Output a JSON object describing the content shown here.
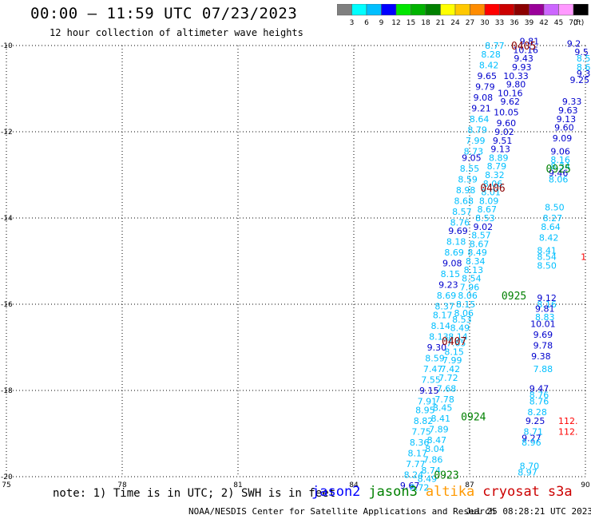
{
  "title": "00:00 – 11:59 UTC 07/23/2023",
  "subtitle": "12 hour collection of altimeter wave heights",
  "colorbar": {
    "labels": [
      "3",
      "6",
      "9",
      "12",
      "15",
      "18",
      "21",
      "24",
      "27",
      "30",
      "33",
      "36",
      "39",
      "42",
      "45",
      "70"
    ],
    "unit": "(ft)",
    "colors": [
      "#7f7f7f",
      "#00ffff",
      "#00bfff",
      "#0000ff",
      "#00e600",
      "#00b300",
      "#008000",
      "#ffff00",
      "#ffc800",
      "#ff8c00",
      "#ff0000",
      "#cc0000",
      "#8b0000",
      "#990099",
      "#cc66ff",
      "#ff99ff",
      "#000000"
    ]
  },
  "map": {
    "lon_ticks": [
      75,
      78,
      81,
      84,
      87,
      90
    ],
    "lat_ticks": [
      -10,
      -12,
      -14,
      -16,
      -18,
      -20
    ],
    "lon_range": [
      75,
      90
    ],
    "lat_range": [
      -20,
      -10
    ]
  },
  "time_labels": [
    {
      "text": "0405",
      "lon": 88.4,
      "lat": -10.0,
      "color": "#8b0000"
    },
    {
      "text": "0406",
      "lon": 87.6,
      "lat": -13.3,
      "color": "#8b0000"
    },
    {
      "text": "0407",
      "lon": 86.6,
      "lat": -16.85,
      "color": "#8b0000"
    },
    {
      "text": "0925",
      "lon": 89.3,
      "lat": -12.85,
      "color": "#008000"
    },
    {
      "text": "0925",
      "lon": 88.15,
      "lat": -15.8,
      "color": "#008000"
    },
    {
      "text": "0924",
      "lon": 87.1,
      "lat": -18.6,
      "color": "#008000"
    },
    {
      "text": "0923",
      "lon": 86.4,
      "lat": -19.95,
      "color": "#008000"
    }
  ],
  "swh_labels": [
    {
      "text": "8.77",
      "lon": 87.65,
      "lat": -10.0,
      "c": "l"
    },
    {
      "text": "8.28",
      "lon": 87.55,
      "lat": -10.2,
      "c": "l"
    },
    {
      "text": "8.42",
      "lon": 87.5,
      "lat": -10.45,
      "c": "l"
    },
    {
      "text": "9.65",
      "lon": 87.45,
      "lat": -10.7,
      "c": "d"
    },
    {
      "text": "9.79",
      "lon": 87.4,
      "lat": -10.95,
      "c": "d"
    },
    {
      "text": "9.08",
      "lon": 87.35,
      "lat": -11.2,
      "c": "d"
    },
    {
      "text": "9.21",
      "lon": 87.3,
      "lat": -11.45,
      "c": "d"
    },
    {
      "text": "8.64",
      "lon": 87.25,
      "lat": -11.7,
      "c": "l"
    },
    {
      "text": "8.79",
      "lon": 87.2,
      "lat": -11.95,
      "c": "l"
    },
    {
      "text": "7.99",
      "lon": 87.15,
      "lat": -12.2,
      "c": "l"
    },
    {
      "text": "8.73",
      "lon": 87.1,
      "lat": -12.45,
      "c": "l"
    },
    {
      "text": "9.05",
      "lon": 87.05,
      "lat": -12.6,
      "c": "d"
    },
    {
      "text": "8.55",
      "lon": 87.0,
      "lat": -12.85,
      "c": "l"
    },
    {
      "text": "8.59",
      "lon": 86.95,
      "lat": -13.1,
      "c": "l"
    },
    {
      "text": "8.98",
      "lon": 86.9,
      "lat": -13.35,
      "c": "l"
    },
    {
      "text": "8.68",
      "lon": 86.85,
      "lat": -13.6,
      "c": "l"
    },
    {
      "text": "8.57",
      "lon": 86.8,
      "lat": -13.85,
      "c": "l"
    },
    {
      "text": "8.76",
      "lon": 86.75,
      "lat": -14.1,
      "c": "l"
    },
    {
      "text": "9.69",
      "lon": 86.7,
      "lat": -14.3,
      "c": "d"
    },
    {
      "text": "8.18",
      "lon": 86.65,
      "lat": -14.55,
      "c": "l"
    },
    {
      "text": "8.69",
      "lon": 86.6,
      "lat": -14.8,
      "c": "l"
    },
    {
      "text": "9.08",
      "lon": 86.55,
      "lat": -15.05,
      "c": "d"
    },
    {
      "text": "8.15",
      "lon": 86.5,
      "lat": -15.3,
      "c": "l"
    },
    {
      "text": "9.23",
      "lon": 86.45,
      "lat": -15.55,
      "c": "d"
    },
    {
      "text": "8.69",
      "lon": 86.4,
      "lat": -15.8,
      "c": "l"
    },
    {
      "text": "8.37",
      "lon": 86.35,
      "lat": -16.05,
      "c": "l"
    },
    {
      "text": "8.17",
      "lon": 86.3,
      "lat": -16.25,
      "c": "l"
    },
    {
      "text": "8.14",
      "lon": 86.25,
      "lat": -16.5,
      "c": "l"
    },
    {
      "text": "8.13",
      "lon": 86.2,
      "lat": -16.75,
      "c": "l"
    },
    {
      "text": "9.30",
      "lon": 86.15,
      "lat": -17.0,
      "c": "d"
    },
    {
      "text": "8.59",
      "lon": 86.1,
      "lat": -17.25,
      "c": "l"
    },
    {
      "text": "7.47",
      "lon": 86.05,
      "lat": -17.5,
      "c": "l"
    },
    {
      "text": "7.55",
      "lon": 86.0,
      "lat": -17.75,
      "c": "l"
    },
    {
      "text": "9.15",
      "lon": 85.95,
      "lat": -18.0,
      "c": "d"
    },
    {
      "text": "7.91",
      "lon": 85.9,
      "lat": -18.25,
      "c": "l"
    },
    {
      "text": "8.95",
      "lon": 85.85,
      "lat": -18.45,
      "c": "l"
    },
    {
      "text": "8.82",
      "lon": 85.8,
      "lat": -18.7,
      "c": "l"
    },
    {
      "text": "7.75",
      "lon": 85.75,
      "lat": -18.95,
      "c": "l"
    },
    {
      "text": "8.36",
      "lon": 85.7,
      "lat": -19.2,
      "c": "l"
    },
    {
      "text": "8.17",
      "lon": 85.65,
      "lat": -19.45,
      "c": "l"
    },
    {
      "text": "7.77",
      "lon": 85.6,
      "lat": -19.7,
      "c": "l"
    },
    {
      "text": "8.24",
      "lon": 85.55,
      "lat": -19.95,
      "c": "l"
    },
    {
      "text": "9.67",
      "lon": 85.45,
      "lat": -20.2,
      "c": "d"
    },
    {
      "text": "8.72",
      "lon": 85.7,
      "lat": -20.25,
      "c": "l"
    },
    {
      "text": "8.49",
      "lon": 85.9,
      "lat": -20.05,
      "c": "l"
    },
    {
      "text": "8.74",
      "lon": 86.0,
      "lat": -19.85,
      "c": "l"
    },
    {
      "text": "7.86",
      "lon": 86.05,
      "lat": -19.6,
      "c": "l"
    },
    {
      "text": "8.04",
      "lon": 86.1,
      "lat": -19.35,
      "c": "l"
    },
    {
      "text": "8.47",
      "lon": 86.15,
      "lat": -19.15,
      "c": "l"
    },
    {
      "text": "7.89",
      "lon": 86.2,
      "lat": -18.9,
      "c": "l"
    },
    {
      "text": "8.41",
      "lon": 86.25,
      "lat": -18.65,
      "c": "l"
    },
    {
      "text": "8.45",
      "lon": 86.3,
      "lat": -18.4,
      "c": "l"
    },
    {
      "text": "7.78",
      "lon": 86.35,
      "lat": -18.2,
      "c": "l"
    },
    {
      "text": "7.68",
      "lon": 86.4,
      "lat": -17.95,
      "c": "l"
    },
    {
      "text": "7.72",
      "lon": 86.45,
      "lat": -17.7,
      "c": "l"
    },
    {
      "text": "7.42",
      "lon": 86.5,
      "lat": -17.5,
      "c": "l"
    },
    {
      "text": "7.99",
      "lon": 86.55,
      "lat": -17.3,
      "c": "l"
    },
    {
      "text": "8.15",
      "lon": 86.6,
      "lat": -17.1,
      "c": "l"
    },
    {
      "text": "7.65",
      "lon": 86.65,
      "lat": -16.9,
      "c": "l"
    },
    {
      "text": "8.14",
      "lon": 86.7,
      "lat": -16.75,
      "c": "l"
    },
    {
      "text": "8.49",
      "lon": 86.75,
      "lat": -16.55,
      "c": "l"
    },
    {
      "text": "8.53",
      "lon": 86.8,
      "lat": -16.35,
      "c": "l"
    },
    {
      "text": "8.06",
      "lon": 86.85,
      "lat": -16.2,
      "c": "l"
    },
    {
      "text": "8.15",
      "lon": 86.9,
      "lat": -16.0,
      "c": "l"
    },
    {
      "text": "8.06",
      "lon": 86.95,
      "lat": -15.8,
      "c": "l"
    },
    {
      "text": "7.96",
      "lon": 87.0,
      "lat": -15.6,
      "c": "l"
    },
    {
      "text": "8.54",
      "lon": 87.05,
      "lat": -15.4,
      "c": "l"
    },
    {
      "text": "8.13",
      "lon": 87.1,
      "lat": -15.2,
      "c": "l"
    },
    {
      "text": "8.34",
      "lon": 87.15,
      "lat": -15.0,
      "c": "l"
    },
    {
      "text": "8.49",
      "lon": 87.2,
      "lat": -14.8,
      "c": "l"
    },
    {
      "text": "8.67",
      "lon": 87.25,
      "lat": -14.6,
      "c": "l"
    },
    {
      "text": "8.57",
      "lon": 87.3,
      "lat": -14.4,
      "c": "l"
    },
    {
      "text": "9.02",
      "lon": 87.35,
      "lat": -14.2,
      "c": "d"
    },
    {
      "text": "8.53",
      "lon": 87.4,
      "lat": -14.0,
      "c": "l"
    },
    {
      "text": "8.67",
      "lon": 87.45,
      "lat": -13.8,
      "c": "l"
    },
    {
      "text": "8.09",
      "lon": 87.5,
      "lat": -13.6,
      "c": "l"
    },
    {
      "text": "8.01",
      "lon": 87.55,
      "lat": -13.4,
      "c": "l"
    },
    {
      "text": "8.06",
      "lon": 87.6,
      "lat": -13.2,
      "c": "l"
    },
    {
      "text": "8.32",
      "lon": 87.65,
      "lat": -13.0,
      "c": "l"
    },
    {
      "text": "8.79",
      "lon": 87.7,
      "lat": -12.8,
      "c": "l"
    },
    {
      "text": "8.89",
      "lon": 87.75,
      "lat": -12.6,
      "c": "l"
    },
    {
      "text": "9.13",
      "lon": 87.8,
      "lat": -12.4,
      "c": "d"
    },
    {
      "text": "9.51",
      "lon": 87.85,
      "lat": -12.2,
      "c": "d"
    },
    {
      "text": "9.02",
      "lon": 87.9,
      "lat": -12.0,
      "c": "d"
    },
    {
      "text": "9.60",
      "lon": 87.95,
      "lat": -11.8,
      "c": "d"
    },
    {
      "text": "10.05",
      "lon": 87.95,
      "lat": -11.55,
      "c": "d"
    },
    {
      "text": "9.62",
      "lon": 88.05,
      "lat": -11.3,
      "c": "d"
    },
    {
      "text": "10.16",
      "lon": 88.05,
      "lat": -11.1,
      "c": "d"
    },
    {
      "text": "9.80",
      "lon": 88.2,
      "lat": -10.9,
      "c": "d"
    },
    {
      "text": "10.33",
      "lon": 88.2,
      "lat": -10.7,
      "c": "d"
    },
    {
      "text": "9.93",
      "lon": 88.35,
      "lat": -10.5,
      "c": "d"
    },
    {
      "text": "9.43",
      "lon": 88.4,
      "lat": -10.3,
      "c": "d"
    },
    {
      "text": "10.16",
      "lon": 88.45,
      "lat": -10.1,
      "c": "d"
    },
    {
      "text": "9.81",
      "lon": 88.55,
      "lat": -9.9,
      "c": "d"
    },
    {
      "text": "9.2",
      "lon": 89.7,
      "lat": -9.95,
      "c": "d"
    },
    {
      "text": "9.5",
      "lon": 89.9,
      "lat": -10.15,
      "c": "d"
    },
    {
      "text": "8.5",
      "lon": 89.95,
      "lat": -10.3,
      "c": "l"
    },
    {
      "text": "8.6",
      "lon": 89.95,
      "lat": -10.5,
      "c": "l"
    },
    {
      "text": "9.3",
      "lon": 89.95,
      "lat": -10.65,
      "c": "d"
    },
    {
      "text": "9.25",
      "lon": 89.85,
      "lat": -10.8,
      "c": "d"
    },
    {
      "text": "9.33",
      "lon": 89.65,
      "lat": -11.3,
      "c": "d"
    },
    {
      "text": "9.63",
      "lon": 89.55,
      "lat": -11.5,
      "c": "d"
    },
    {
      "text": "9.13",
      "lon": 89.5,
      "lat": -11.7,
      "c": "d"
    },
    {
      "text": "9.60",
      "lon": 89.45,
      "lat": -11.9,
      "c": "d"
    },
    {
      "text": "9.09",
      "lon": 89.4,
      "lat": -12.15,
      "c": "d"
    },
    {
      "text": "9.06",
      "lon": 89.35,
      "lat": -12.45,
      "c": "d"
    },
    {
      "text": "8.16",
      "lon": 89.35,
      "lat": -12.65,
      "c": "l"
    },
    {
      "text": "8.34",
      "lon": 89.35,
      "lat": -12.8,
      "c": "l"
    },
    {
      "text": "9.46",
      "lon": 89.3,
      "lat": -12.95,
      "c": "d"
    },
    {
      "text": "8.06",
      "lon": 89.3,
      "lat": -13.1,
      "c": "l"
    },
    {
      "text": "8.50",
      "lon": 89.2,
      "lat": -13.75,
      "c": "l"
    },
    {
      "text": "8.27",
      "lon": 89.15,
      "lat": -14.0,
      "c": "l"
    },
    {
      "text": "8.64",
      "lon": 89.1,
      "lat": -14.2,
      "c": "l"
    },
    {
      "text": "8.42",
      "lon": 89.05,
      "lat": -14.45,
      "c": "l"
    },
    {
      "text": "8.41",
      "lon": 89.0,
      "lat": -14.75,
      "c": "l"
    },
    {
      "text": "8.54",
      "lon": 89.0,
      "lat": -14.9,
      "c": "l"
    },
    {
      "text": "8.50",
      "lon": 89.0,
      "lat": -15.1,
      "c": "l"
    },
    {
      "text": "9.12",
      "lon": 89.0,
      "lat": -15.85,
      "c": "d"
    },
    {
      "text": "8.16",
      "lon": 89.0,
      "lat": -16.0,
      "c": "l"
    },
    {
      "text": "9.81",
      "lon": 88.95,
      "lat": -16.1,
      "c": "d"
    },
    {
      "text": "8.83",
      "lon": 88.95,
      "lat": -16.3,
      "c": "l"
    },
    {
      "text": "10.01",
      "lon": 88.9,
      "lat": -16.45,
      "c": "d"
    },
    {
      "text": "9.69",
      "lon": 88.9,
      "lat": -16.7,
      "c": "d"
    },
    {
      "text": "9.78",
      "lon": 88.9,
      "lat": -16.95,
      "c": "d"
    },
    {
      "text": "9.38",
      "lon": 88.85,
      "lat": -17.2,
      "c": "d"
    },
    {
      "text": "7.88",
      "lon": 88.9,
      "lat": -17.5,
      "c": "l"
    },
    {
      "text": "9.47",
      "lon": 88.8,
      "lat": -17.95,
      "c": "d"
    },
    {
      "text": "8.76",
      "lon": 88.8,
      "lat": -18.1,
      "c": "l"
    },
    {
      "text": "8.76",
      "lon": 88.8,
      "lat": -18.25,
      "c": "l"
    },
    {
      "text": "8.28",
      "lon": 88.75,
      "lat": -18.5,
      "c": "l"
    },
    {
      "text": "9.25",
      "lon": 88.7,
      "lat": -18.7,
      "c": "d"
    },
    {
      "text": "8.71",
      "lon": 88.65,
      "lat": -18.95,
      "c": "l"
    },
    {
      "text": "9.27",
      "lon": 88.6,
      "lat": -19.1,
      "c": "d"
    },
    {
      "text": "8.96",
      "lon": 88.6,
      "lat": -19.2,
      "c": "l"
    },
    {
      "text": "8.70",
      "lon": 88.55,
      "lat": -19.75,
      "c": "l"
    },
    {
      "text": "8.97",
      "lon": 88.5,
      "lat": -19.9,
      "c": "l"
    },
    {
      "text": "112.",
      "lon": 89.55,
      "lat": -18.7,
      "c": "r"
    },
    {
      "text": "112.",
      "lon": 89.55,
      "lat": -18.95,
      "c": "r"
    },
    {
      "text": "1",
      "lon": 89.95,
      "lat": -14.9,
      "c": "r"
    }
  ],
  "label_colors": {
    "l": "#00bfff",
    "d": "#0000cd",
    "r": "#ff0000"
  },
  "note": "note: 1) Time is in UTC; 2) SWH is in feet",
  "satellites": [
    {
      "name": "jason2",
      "color": "#0000ff"
    },
    {
      "name": "jason3",
      "color": "#008000"
    },
    {
      "name": "altika",
      "color": "#ff9900"
    },
    {
      "name": "cryosat",
      "color": "#cc0000"
    },
    {
      "name": "s3a",
      "color": "#cc0000"
    }
  ],
  "credit": "NOAA/NESDIS Center for Satellite Applications and Research",
  "timestamp": "Jul 25 08:28:21 UTC 2023"
}
